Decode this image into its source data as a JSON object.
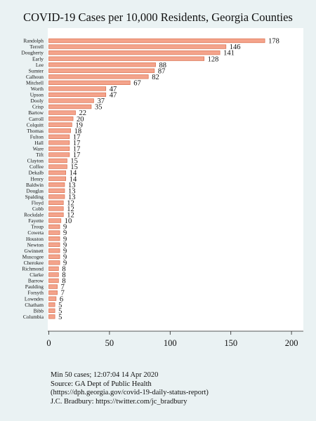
{
  "chart_data": {
    "type": "bar",
    "orientation": "horizontal",
    "title": "COVID-19 Cases per 10,000 Residents, Georgia Counties",
    "xlabel": "",
    "ylabel": "",
    "xlim": [
      0,
      210
    ],
    "xticks": [
      0,
      50,
      100,
      150,
      200
    ],
    "grid": false,
    "bar_color": "#f4a48c",
    "bar_edge_color": "#d9704f",
    "categories": [
      "Randolph",
      "Terrell",
      "Dougherty",
      "Early",
      "Lee",
      "Sumter",
      "Calhoun",
      "Mitchell",
      "Worth",
      "Upson",
      "Dooly",
      "Crisp",
      "Bartow",
      "Carroll",
      "Colquitt",
      "Thomas",
      "Fulton",
      "Hall",
      "Ware",
      "Tift",
      "Clayton",
      "Coffee",
      "Dekalb",
      "Henry",
      "Baldwin",
      "Douglas",
      "Spalding",
      "Floyd",
      "Cobb",
      "Rockdale",
      "Fayette",
      "Troup",
      "Coweta",
      "Houston",
      "Newton",
      "Gwinnett",
      "Muscogee",
      "Cherokee",
      "Richmond",
      "Clarke",
      "Barrow",
      "Paulding",
      "Forsyth",
      "Lowndes",
      "Chatham",
      "Bibb",
      "Columbia"
    ],
    "values": [
      178,
      146,
      141,
      128,
      88,
      87,
      82,
      67,
      47,
      47,
      37,
      35,
      22,
      20,
      19,
      18,
      17,
      17,
      17,
      17,
      15,
      15,
      14,
      14,
      13,
      13,
      13,
      12,
      12,
      12,
      10,
      9,
      9,
      9,
      9,
      9,
      9,
      9,
      8,
      8,
      8,
      7,
      7,
      6,
      5,
      5,
      5
    ],
    "notes": [
      "Min 50 cases; 12:07:04  14 Apr 2020",
      "Source: GA Dept of Public Health",
      "(https://dph.georgia.gov/covid-19-daily-status-report)",
      "J.C. Bradbury: https://twitter.com/jc_bradbury"
    ]
  }
}
